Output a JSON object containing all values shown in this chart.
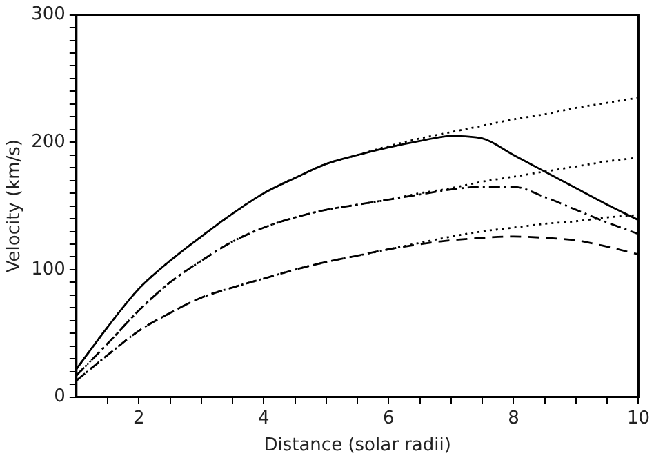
{
  "chart_data": {
    "type": "line",
    "xlabel": "Distance (solar radii)",
    "ylabel": "Velocity (km/s)",
    "xlim": [
      1,
      10
    ],
    "ylim": [
      0,
      300
    ],
    "xticks": [
      {
        "value": 1.5,
        "label": null
      },
      2,
      {
        "value": 2.5,
        "label": null
      },
      {
        "value": 3,
        "label": null
      },
      {
        "value": 3.5,
        "label": null
      },
      4,
      {
        "value": 4.5,
        "label": null
      },
      {
        "value": 5,
        "label": null
      },
      {
        "value": 5.5,
        "label": null
      },
      6,
      {
        "value": 6.5,
        "label": null
      },
      {
        "value": 7,
        "label": null
      },
      {
        "value": 7.5,
        "label": null
      },
      8,
      {
        "value": 8.5,
        "label": null
      },
      {
        "value": 9,
        "label": null
      },
      {
        "value": 9.5,
        "label": null
      },
      10
    ],
    "yticks": [
      0,
      {
        "value": 10,
        "label": null
      },
      {
        "value": 20,
        "label": null
      },
      {
        "value": 30,
        "label": null
      },
      {
        "value": 40,
        "label": null
      },
      {
        "value": 50,
        "label": null
      },
      {
        "value": 60,
        "label": null
      },
      {
        "value": 70,
        "label": null
      },
      {
        "value": 80,
        "label": null
      },
      {
        "value": 90,
        "label": null
      },
      100,
      {
        "value": 110,
        "label": null
      },
      {
        "value": 120,
        "label": null
      },
      {
        "value": 130,
        "label": null
      },
      {
        "value": 140,
        "label": null
      },
      {
        "value": 150,
        "label": null
      },
      {
        "value": 160,
        "label": null
      },
      {
        "value": 170,
        "label": null
      },
      {
        "value": 180,
        "label": null
      },
      {
        "value": 190,
        "label": null
      },
      200,
      {
        "value": 210,
        "label": null
      },
      {
        "value": 220,
        "label": null
      },
      {
        "value": 230,
        "label": null
      },
      {
        "value": 240,
        "label": null
      },
      {
        "value": 250,
        "label": null
      },
      {
        "value": 260,
        "label": null
      },
      {
        "value": 270,
        "label": null
      },
      {
        "value": 280,
        "label": null
      },
      {
        "value": 290,
        "label": null
      },
      300
    ],
    "grid": false,
    "legend": false,
    "marker": "none",
    "x": [
      1,
      1.5,
      2,
      2.5,
      3,
      3.5,
      4,
      4.5,
      5,
      5.5,
      6,
      6.5,
      7,
      7.5,
      8,
      8.5,
      9,
      9.5,
      10
    ],
    "series": [
      {
        "color": "#000000",
        "line_style": "dotted",
        "values": [
          22,
          55,
          85,
          107,
          126,
          144,
          160,
          172,
          183,
          190,
          197,
          203,
          208,
          213,
          218,
          222,
          227,
          231,
          235
        ]
      },
      {
        "color": "#000000",
        "line_style": "solid",
        "values": [
          22,
          55,
          85,
          107,
          126,
          144,
          160,
          172,
          183,
          190,
          196,
          201,
          205,
          203,
          190,
          177,
          164,
          151,
          139
        ]
      },
      {
        "color": "#000000",
        "line_style": "dotted",
        "values": [
          17,
          42,
          68,
          90,
          107,
          122,
          133,
          141,
          147,
          151,
          155,
          160,
          164,
          169,
          173,
          177,
          181,
          185,
          188
        ]
      },
      {
        "color": "#000000",
        "line_style": "dashdot",
        "values": [
          17,
          42,
          68,
          90,
          107,
          122,
          133,
          141,
          147,
          151,
          155,
          159,
          163,
          165,
          165,
          157,
          147,
          137,
          128
        ]
      },
      {
        "color": "#000000",
        "line_style": "dotted",
        "values": [
          13,
          33,
          52,
          66,
          78,
          86,
          93,
          100,
          106,
          111,
          116,
          121,
          126,
          130,
          133,
          136,
          138,
          141,
          143
        ]
      },
      {
        "color": "#000000",
        "line_style": "dashed",
        "values": [
          13,
          33,
          52,
          66,
          78,
          86,
          93,
          100,
          106,
          111,
          116,
          120,
          123,
          125,
          126,
          125,
          123,
          118,
          112
        ]
      }
    ]
  }
}
